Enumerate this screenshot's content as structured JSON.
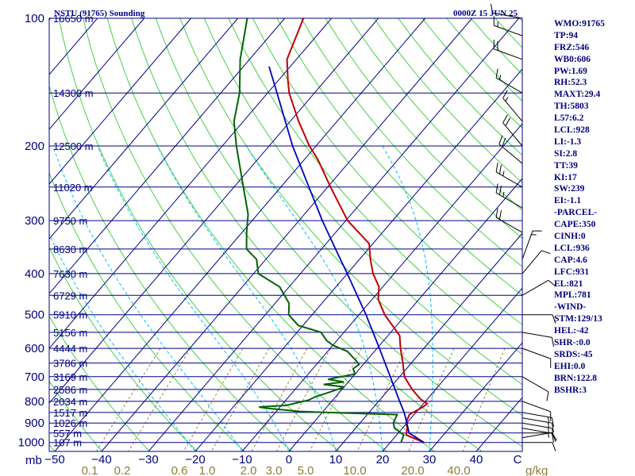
{
  "header": {
    "title": "NSTU (91765) Sounding",
    "valid_time": "0000Z 15 JUN 25"
  },
  "indices": [
    "WMO:91765",
    "TP:94",
    "FRZ:546",
    "WB0:606",
    "PW:1.69",
    "RH:52.3",
    "MAXT:29.4",
    "TH:5803",
    "L57:6.2",
    "LCL:928",
    "LI:-1.3",
    "SI:2.8",
    "TT:39",
    "KI:17",
    "SW:239",
    "EI:-1.1",
    "-PARCEL-",
    "CAPE:350",
    "CINH:0",
    "LCL:936",
    "CAP:4.6",
    "LFC:931",
    "EL:821",
    "MPL:781",
    "-WIND-",
    "STM:129/13",
    "HEL:-42",
    "SHR-:0.0",
    "SRDS:-45",
    "EHI:0.0",
    "BRN:122.8",
    "BSHR:3"
  ],
  "colors": {
    "isobar": "#00008b",
    "isotherm": "#00008b",
    "dry_adiabat": "#32cd32",
    "moist_adiabat": "#00bfff",
    "mixing_ratio": "#8b7d3a",
    "temperature": "#c00000",
    "dewpoint": "#006400",
    "parcel": "#0000c0",
    "frame": "#000080"
  },
  "chart_data": {
    "type": "skew-t",
    "title": "NSTU (91765) Sounding",
    "subtitle": "0000Z 15 JUN 25",
    "pressure_levels_label": "mb",
    "isobars_mb": [
      100,
      200,
      300,
      400,
      500,
      600,
      700,
      800,
      900,
      1000
    ],
    "height_labels": [
      {
        "p": 100,
        "label": "16650 m"
      },
      {
        "p": 150,
        "label": "14300 m"
      },
      {
        "p": 200,
        "label": "12500 m"
      },
      {
        "p": 250,
        "label": "11020 m"
      },
      {
        "p": 300,
        "label": "9750 m"
      },
      {
        "p": 350,
        "label": "8630 m"
      },
      {
        "p": 400,
        "label": "7630 m"
      },
      {
        "p": 450,
        "label": "6729 m"
      },
      {
        "p": 500,
        "label": "5910 m"
      },
      {
        "p": 550,
        "label": "5156 m"
      },
      {
        "p": 600,
        "label": "4444 m"
      },
      {
        "p": 650,
        "label": "3786 m"
      },
      {
        "p": 700,
        "label": "3169 m"
      },
      {
        "p": 750,
        "label": "2586 m"
      },
      {
        "p": 800,
        "label": "2034 m"
      },
      {
        "p": 850,
        "label": "1517 m"
      },
      {
        "p": 900,
        "label": "1026 m"
      },
      {
        "p": 950,
        "label": "557 m"
      },
      {
        "p": 1000,
        "label": "107 m"
      }
    ],
    "temperature_ticks_c": [
      -50,
      -40,
      -30,
      -20,
      -10,
      0,
      10,
      20,
      30,
      40,
      50
    ],
    "temperature_tick_labels": [
      "−50",
      "−40",
      "−30",
      "−20",
      "−10",
      "0",
      "10",
      "20",
      "30",
      "40",
      "C"
    ],
    "mixing_ratio_labels": [
      "0.1",
      "0.2",
      "0.6",
      "1.0",
      "2.0",
      "3.0",
      "5.0",
      "10.0",
      "20.0",
      "40.0",
      "g/kg"
    ],
    "temperature_profile": [
      {
        "p": 1000,
        "t": 27.2
      },
      {
        "p": 960,
        "t": 22.0
      },
      {
        "p": 925,
        "t": 21.0
      },
      {
        "p": 900,
        "t": 19.8
      },
      {
        "p": 860,
        "t": 19.0
      },
      {
        "p": 825,
        "t": 20.5
      },
      {
        "p": 810,
        "t": 20.8
      },
      {
        "p": 790,
        "t": 18.5
      },
      {
        "p": 750,
        "t": 15.0
      },
      {
        "p": 700,
        "t": 11.0
      },
      {
        "p": 650,
        "t": 8.2
      },
      {
        "p": 600,
        "t": 5.0
      },
      {
        "p": 560,
        "t": 2.5
      },
      {
        "p": 500,
        "t": -4.5
      },
      {
        "p": 460,
        "t": -8.7
      },
      {
        "p": 430,
        "t": -10.8
      },
      {
        "p": 400,
        "t": -14.5
      },
      {
        "p": 370,
        "t": -17.7
      },
      {
        "p": 340,
        "t": -20.8
      },
      {
        "p": 300,
        "t": -29.6
      },
      {
        "p": 250,
        "t": -39.4
      },
      {
        "p": 215,
        "t": -47.2
      },
      {
        "p": 200,
        "t": -51.4
      },
      {
        "p": 175,
        "t": -58.2
      },
      {
        "p": 150,
        "t": -65.4
      },
      {
        "p": 140,
        "t": -68.0
      },
      {
        "p": 125,
        "t": -72.0
      },
      {
        "p": 100,
        "t": -76.0
      }
    ],
    "dewpoint_profile": [
      {
        "p": 1000,
        "t": 22.3
      },
      {
        "p": 960,
        "t": 21.5
      },
      {
        "p": 925,
        "t": 18.3
      },
      {
        "p": 900,
        "t": 17.1
      },
      {
        "p": 860,
        "t": 16.4
      },
      {
        "p": 850,
        "t": 1.0
      },
      {
        "p": 845,
        "t": -5.0
      },
      {
        "p": 830,
        "t": -13.0
      },
      {
        "p": 825,
        "t": -14.5
      },
      {
        "p": 818,
        "t": -9.0
      },
      {
        "p": 795,
        "t": -5.2
      },
      {
        "p": 780,
        "t": -4.3
      },
      {
        "p": 760,
        "t": -2.0
      },
      {
        "p": 740,
        "t": 0.1
      },
      {
        "p": 730,
        "t": -4.8
      },
      {
        "p": 720,
        "t": -1.0
      },
      {
        "p": 710,
        "t": -4.8
      },
      {
        "p": 690,
        "t": 0.0
      },
      {
        "p": 670,
        "t": -1.4
      },
      {
        "p": 655,
        "t": -0.9
      },
      {
        "p": 640,
        "t": -2.4
      },
      {
        "p": 610,
        "t": -5.8
      },
      {
        "p": 590,
        "t": -10.0
      },
      {
        "p": 575,
        "t": -12.2
      },
      {
        "p": 550,
        "t": -14.9
      },
      {
        "p": 530,
        "t": -21.0
      },
      {
        "p": 500,
        "t": -25.0
      },
      {
        "p": 470,
        "t": -27.0
      },
      {
        "p": 430,
        "t": -32.0
      },
      {
        "p": 400,
        "t": -39.0
      },
      {
        "p": 370,
        "t": -42.0
      },
      {
        "p": 350,
        "t": -46.0
      },
      {
        "p": 320,
        "t": -49.0
      },
      {
        "p": 290,
        "t": -52.0
      },
      {
        "p": 250,
        "t": -58.0
      },
      {
        "p": 200,
        "t": -67.0
      },
      {
        "p": 175,
        "t": -72.0
      },
      {
        "p": 150,
        "t": -76.0
      },
      {
        "p": 125,
        "t": -82.0
      },
      {
        "p": 100,
        "t": -88.0
      }
    ],
    "parcel_profile": [
      {
        "p": 1000,
        "t": 27.2
      },
      {
        "p": 950,
        "t": 22.3
      },
      {
        "p": 900,
        "t": 20.0
      },
      {
        "p": 850,
        "t": 17.5
      },
      {
        "p": 800,
        "t": 14.5
      },
      {
        "p": 700,
        "t": 8.0
      },
      {
        "p": 600,
        "t": 0.5
      },
      {
        "p": 500,
        "t": -8.5
      },
      {
        "p": 400,
        "t": -20.0
      },
      {
        "p": 350,
        "t": -27.0
      },
      {
        "p": 300,
        "t": -35.0
      },
      {
        "p": 250,
        "t": -44.0
      },
      {
        "p": 200,
        "t": -55.0
      },
      {
        "p": 150,
        "t": -68.0
      },
      {
        "p": 130,
        "t": -74.5
      }
    ],
    "dry_adiabats_theta_k": [
      200,
      210,
      220,
      230,
      240,
      250,
      260,
      270,
      280,
      290,
      300,
      310,
      320,
      330,
      340,
      350,
      360,
      370,
      380,
      390,
      400,
      410,
      420,
      430,
      440,
      450,
      460,
      470,
      480,
      490,
      500
    ],
    "mixing_ratio_lines_gkg": [
      0.1,
      0.2,
      0.6,
      1.0,
      2.0,
      3.0,
      5.0,
      10.0,
      20.0,
      40.0
    ],
    "moist_adiabat_start_temps_c": [
      -20,
      -10,
      0,
      10,
      20,
      30
    ],
    "wind_barbs": [
      {
        "p": 1000,
        "dir": 90,
        "spd": 10
      },
      {
        "p": 975,
        "dir": 80,
        "spd": 10
      },
      {
        "p": 950,
        "dir": 90,
        "spd": 10
      },
      {
        "p": 925,
        "dir": 100,
        "spd": 15
      },
      {
        "p": 900,
        "dir": 100,
        "spd": 15
      },
      {
        "p": 875,
        "dir": 100,
        "spd": 15
      },
      {
        "p": 850,
        "dir": 100,
        "spd": 15
      },
      {
        "p": 800,
        "dir": 110,
        "spd": 10
      },
      {
        "p": 700,
        "dir": 120,
        "spd": 10
      },
      {
        "p": 600,
        "dir": 110,
        "spd": 10
      },
      {
        "p": 550,
        "dir": 100,
        "spd": 10
      },
      {
        "p": 500,
        "dir": 90,
        "spd": 10
      },
      {
        "p": 450,
        "dir": 60,
        "spd": 10
      },
      {
        "p": 400,
        "dir": 40,
        "spd": 10
      },
      {
        "p": 370,
        "dir": 20,
        "spd": 15
      },
      {
        "p": 320,
        "dir": 300,
        "spd": 20
      },
      {
        "p": 280,
        "dir": 300,
        "spd": 25
      },
      {
        "p": 250,
        "dir": 300,
        "spd": 25
      },
      {
        "p": 220,
        "dir": 310,
        "spd": 20
      },
      {
        "p": 200,
        "dir": 320,
        "spd": 20
      },
      {
        "p": 175,
        "dir": 320,
        "spd": 15
      },
      {
        "p": 150,
        "dir": 300,
        "spd": 15
      },
      {
        "p": 125,
        "dir": 290,
        "spd": 20
      },
      {
        "p": 110,
        "dir": 290,
        "spd": 15
      },
      {
        "p": 100,
        "dir": 280,
        "spd": 10
      }
    ]
  }
}
